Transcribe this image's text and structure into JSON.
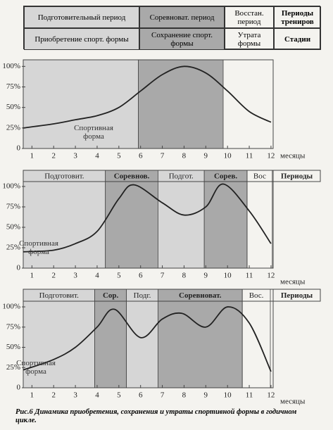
{
  "header_table": {
    "rows": [
      [
        "Подготовительный период",
        "Соревноват. период",
        "Восстан. период",
        "Периоды трениров"
      ],
      [
        "Приобретение спорт. формы",
        "Сохранение спорт. формы",
        "Утрата формы",
        "Стадии"
      ]
    ],
    "shades": [
      "light",
      "dark",
      "none",
      "none"
    ]
  },
  "chart_data": [
    {
      "type": "line",
      "annotation": "Спортивная форма",
      "x_label": "месяцы",
      "bands": [
        {
          "start": 0.6,
          "end": 5.9,
          "shade": "light"
        },
        {
          "start": 5.9,
          "end": 9.8,
          "shade": "dark"
        }
      ],
      "x": [
        0.6,
        2,
        3,
        4,
        5,
        6,
        7,
        8,
        9,
        10,
        11,
        12
      ],
      "values": [
        25,
        30,
        35,
        40,
        50,
        70,
        90,
        100,
        92,
        70,
        45,
        32
      ],
      "xlim": [
        0.6,
        12.1
      ],
      "xticks": [
        1,
        2,
        3,
        4,
        5,
        6,
        7,
        8,
        9,
        10,
        11,
        12
      ],
      "ylim": [
        0,
        108
      ],
      "yticks": [
        0,
        {
          "value": 25,
          "label": "25%"
        },
        {
          "value": 50,
          "label": "50%"
        },
        {
          "value": 75,
          "label": "75%"
        },
        {
          "value": 100,
          "label": "100%"
        }
      ],
      "color": "#222"
    },
    {
      "type": "line",
      "annotation": "Спортивная форма",
      "x_label": "месяцы",
      "periods_title": "Периоды",
      "periods": [
        {
          "label": "Подготовит.",
          "start": 0.6,
          "end": 4.38,
          "shade": "light"
        },
        {
          "label": "Соревнов.",
          "start": 4.38,
          "end": 6.8,
          "shade": "dark"
        },
        {
          "label": "Подгот.",
          "start": 6.8,
          "end": 8.93,
          "shade": "light"
        },
        {
          "label": "Сорев.",
          "start": 8.93,
          "end": 10.9,
          "shade": "dark"
        },
        {
          "label": "Вос",
          "start": 10.9,
          "end": 12.06,
          "shade": "none"
        }
      ],
      "x": [
        0.6,
        2,
        3,
        4,
        5,
        5.7,
        7,
        8,
        9,
        9.8,
        11,
        12
      ],
      "values": [
        20,
        22,
        30,
        45,
        85,
        102,
        80,
        65,
        75,
        103,
        70,
        30
      ],
      "xlim": [
        0.6,
        12.1
      ],
      "xticks": [
        1,
        2,
        3,
        4,
        5,
        6,
        7,
        8,
        9,
        10,
        11,
        12
      ],
      "ylim": [
        0,
        106
      ],
      "yticks": [
        0,
        {
          "value": 25,
          "label": "25%"
        },
        {
          "value": 50,
          "label": "50%"
        },
        {
          "value": 75,
          "label": "75%"
        },
        {
          "value": 100,
          "label": "100%"
        }
      ],
      "color": "#222"
    },
    {
      "type": "line",
      "annotation": "Спортивная форма",
      "x_label": "месяцы",
      "periods_title": "Периоды",
      "periods": [
        {
          "label": "Подготовит.",
          "start": 0.6,
          "end": 3.89,
          "shade": "light"
        },
        {
          "label": "Сор.",
          "start": 3.89,
          "end": 5.35,
          "shade": "dark"
        },
        {
          "label": "Подг.",
          "start": 5.35,
          "end": 6.8,
          "shade": "light"
        },
        {
          "label": "Соревноват.",
          "start": 6.8,
          "end": 10.68,
          "shade": "dark"
        },
        {
          "label": "Вос.",
          "start": 10.68,
          "end": 11.97,
          "shade": "none"
        }
      ],
      "x": [
        0.6,
        2,
        3,
        4,
        4.8,
        6,
        7,
        7.9,
        9,
        10,
        11,
        12
      ],
      "values": [
        22,
        35,
        50,
        75,
        97,
        62,
        85,
        92,
        75,
        100,
        80,
        20
      ],
      "xlim": [
        0.6,
        12.1
      ],
      "xticks": [
        1,
        2,
        3,
        4,
        5,
        6,
        7,
        8,
        9,
        10,
        11,
        12
      ],
      "ylim": [
        0,
        107
      ],
      "yticks": [
        0,
        {
          "value": 25,
          "label": "25%"
        },
        {
          "value": 50,
          "label": "50%"
        },
        {
          "value": 75,
          "label": "75%"
        },
        {
          "value": 100,
          "label": "100%"
        }
      ],
      "color": "#222"
    }
  ],
  "caption": "Рис.6 Динамика приобретения, сохранения и утраты спортивной формы в годичном цикле."
}
